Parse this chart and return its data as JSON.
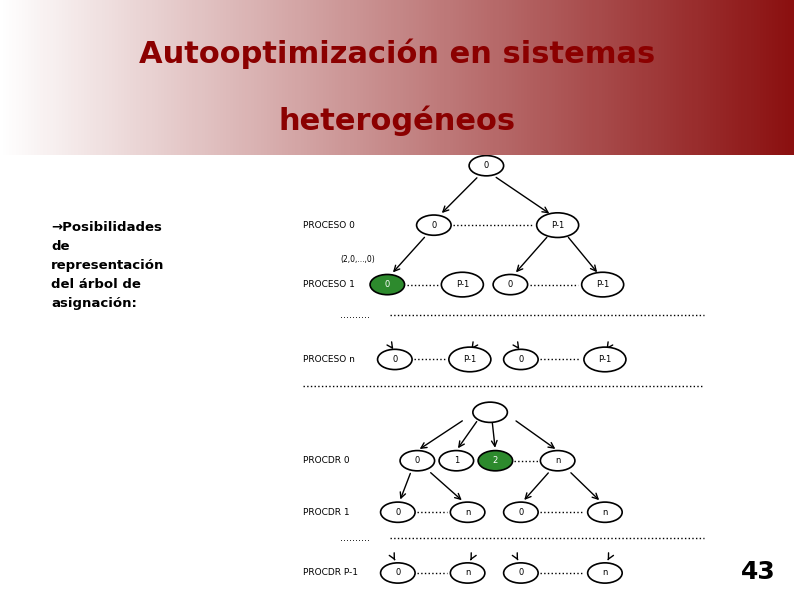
{
  "title_line1": "Autooptimización en sistemas",
  "title_line2": "heterogéneos",
  "title_color": "#8B0000",
  "body_bg": "#ffffff",
  "left_bar_color": "#8B0000",
  "bullet_text": "→Posibilidades\nde\nrepresentación\ndel árbol de\nasignación:",
  "page_number": "43",
  "node_color_normal": "#ffffff",
  "node_color_green": "#2d8a2d",
  "node_border": "#000000",
  "grad_left": "#ffffff",
  "grad_right": "#8B1010"
}
